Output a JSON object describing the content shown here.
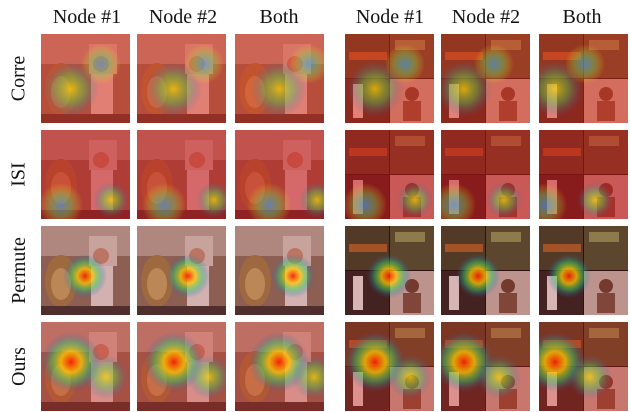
{
  "column_headers": [
    "Node #1",
    "Node #2",
    "Both",
    "Node #1",
    "Node #2",
    "Both"
  ],
  "row_headers": [
    "Corre",
    "ISI",
    "Permute",
    "Ours"
  ],
  "panels": [
    "left-scene-tuba-player",
    "right-scene-guitar-violin-collage"
  ]
}
